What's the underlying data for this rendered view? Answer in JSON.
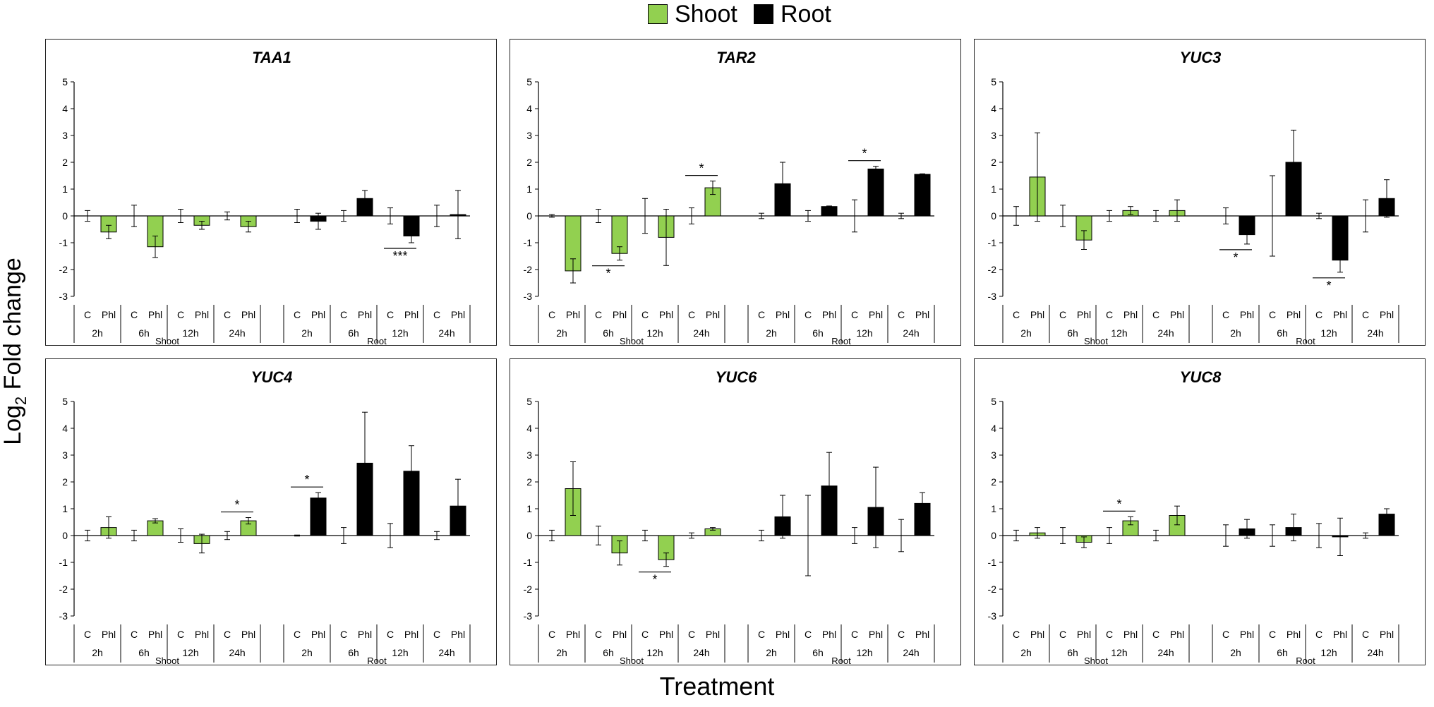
{
  "legend": [
    {
      "label": "Shoot",
      "color": "#92d050"
    },
    {
      "label": "Root",
      "color": "#000000"
    }
  ],
  "ylabel_main": "Log",
  "ylabel_sub": "2",
  "ylabel_rest": " Fold change",
  "xlabel": "Treatment",
  "chart_data": [
    {
      "type": "bar",
      "title": "TAA1",
      "ylim": [
        -3,
        5
      ],
      "yticks": [
        -3,
        -2,
        -1,
        0,
        1,
        2,
        3,
        4,
        5
      ],
      "tissues": [
        "Shoot",
        "Root"
      ],
      "times": [
        "2h",
        "6h",
        "12h",
        "24h"
      ],
      "treatments": [
        "C",
        "Phl"
      ],
      "values": {
        "Shoot": {
          "C": [
            0,
            0,
            0,
            0
          ],
          "Phl": [
            -0.6,
            -1.15,
            -0.35,
            -0.4
          ]
        },
        "Root": {
          "C": [
            0,
            0,
            0,
            0
          ],
          "Phl": [
            -0.2,
            0.65,
            -0.75,
            0.05
          ]
        }
      },
      "errors": {
        "Shoot": {
          "C": [
            0.2,
            0.4,
            0.25,
            0.15
          ],
          "Phl": [
            0.25,
            0.4,
            0.15,
            0.2
          ]
        },
        "Root": {
          "C": [
            0.25,
            0.2,
            0.3,
            0.4
          ],
          "Phl": [
            0.3,
            0.3,
            0.25,
            0.9
          ]
        }
      },
      "significance": [
        {
          "tissue": "Root",
          "time": "12h",
          "label": "***",
          "side": "below"
        }
      ]
    },
    {
      "type": "bar",
      "title": "TAR2",
      "ylim": [
        -3,
        5
      ],
      "yticks": [
        -3,
        -2,
        -1,
        0,
        1,
        2,
        3,
        4,
        5
      ],
      "tissues": [
        "Shoot",
        "Root"
      ],
      "times": [
        "2h",
        "6h",
        "12h",
        "24h"
      ],
      "treatments": [
        "C",
        "Phl"
      ],
      "values": {
        "Shoot": {
          "C": [
            0,
            0,
            0,
            0
          ],
          "Phl": [
            -2.05,
            -1.4,
            -0.8,
            1.05
          ]
        },
        "Root": {
          "C": [
            0,
            0,
            0,
            0
          ],
          "Phl": [
            1.2,
            0.35,
            1.75,
            1.55
          ]
        }
      },
      "errors": {
        "Shoot": {
          "C": [
            0.05,
            0.25,
            0.65,
            0.3
          ],
          "Phl": [
            0.45,
            0.25,
            1.05,
            0.25
          ]
        },
        "Root": {
          "C": [
            0.1,
            0.2,
            0.6,
            0.1
          ],
          "Phl": [
            0.8,
            0.02,
            0.1,
            0.02
          ]
        }
      },
      "significance": [
        {
          "tissue": "Shoot",
          "time": "6h",
          "label": "*",
          "side": "below"
        },
        {
          "tissue": "Shoot",
          "time": "24h",
          "label": "*",
          "side": "above"
        },
        {
          "tissue": "Root",
          "time": "12h",
          "label": "*",
          "side": "above"
        }
      ]
    },
    {
      "type": "bar",
      "title": "YUC3",
      "ylim": [
        -3,
        5
      ],
      "yticks": [
        -3,
        -2,
        -1,
        0,
        1,
        2,
        3,
        4,
        5
      ],
      "tissues": [
        "Shoot",
        "Root"
      ],
      "times": [
        "2h",
        "6h",
        "12h",
        "24h"
      ],
      "treatments": [
        "C",
        "Phl"
      ],
      "values": {
        "Shoot": {
          "C": [
            0,
            0,
            0,
            0
          ],
          "Phl": [
            1.45,
            -0.9,
            0.2,
            0.2
          ]
        },
        "Root": {
          "C": [
            0,
            0,
            0,
            0
          ],
          "Phl": [
            -0.7,
            2.0,
            -1.65,
            0.65
          ]
        }
      },
      "errors": {
        "Shoot": {
          "C": [
            0.35,
            0.4,
            0.2,
            0.2
          ],
          "Phl": [
            1.65,
            0.35,
            0.15,
            0.4
          ]
        },
        "Root": {
          "C": [
            0.3,
            1.5,
            0.1,
            0.6
          ],
          "Phl": [
            0.35,
            1.2,
            0.45,
            0.7
          ]
        }
      },
      "significance": [
        {
          "tissue": "Root",
          "time": "2h",
          "label": "*",
          "side": "below"
        },
        {
          "tissue": "Root",
          "time": "12h",
          "label": "*",
          "side": "below"
        }
      ]
    },
    {
      "type": "bar",
      "title": "YUC4",
      "ylim": [
        -3,
        5
      ],
      "yticks": [
        -3,
        -2,
        -1,
        0,
        1,
        2,
        3,
        4,
        5
      ],
      "tissues": [
        "Shoot",
        "Root"
      ],
      "times": [
        "2h",
        "6h",
        "12h",
        "24h"
      ],
      "treatments": [
        "C",
        "Phl"
      ],
      "values": {
        "Shoot": {
          "C": [
            0,
            0,
            0,
            0
          ],
          "Phl": [
            0.3,
            0.55,
            -0.3,
            0.55
          ]
        },
        "Root": {
          "C": [
            0,
            0,
            0,
            0
          ],
          "Phl": [
            1.4,
            2.7,
            2.4,
            1.1
          ]
        }
      },
      "errors": {
        "Shoot": {
          "C": [
            0.2,
            0.2,
            0.25,
            0.15
          ],
          "Phl": [
            0.4,
            0.08,
            0.35,
            0.12
          ]
        },
        "Root": {
          "C": [
            0.02,
            0.3,
            0.45,
            0.15
          ],
          "Phl": [
            0.2,
            1.9,
            0.95,
            1.0
          ]
        }
      },
      "significance": [
        {
          "tissue": "Shoot",
          "time": "24h",
          "label": "*",
          "side": "above"
        },
        {
          "tissue": "Root",
          "time": "2h",
          "label": "*",
          "side": "above"
        }
      ]
    },
    {
      "type": "bar",
      "title": "YUC6",
      "ylim": [
        -3,
        5
      ],
      "yticks": [
        -3,
        -2,
        -1,
        0,
        1,
        2,
        3,
        4,
        5
      ],
      "tissues": [
        "Shoot",
        "Root"
      ],
      "times": [
        "2h",
        "6h",
        "12h",
        "24h"
      ],
      "treatments": [
        "C",
        "Phl"
      ],
      "values": {
        "Shoot": {
          "C": [
            0,
            0,
            0,
            0
          ],
          "Phl": [
            1.75,
            -0.65,
            -0.9,
            0.25
          ]
        },
        "Root": {
          "C": [
            0,
            0,
            0,
            0
          ],
          "Phl": [
            0.7,
            1.85,
            1.05,
            1.2
          ]
        }
      },
      "errors": {
        "Shoot": {
          "C": [
            0.2,
            0.35,
            0.2,
            0.1
          ],
          "Phl": [
            1.0,
            0.45,
            0.25,
            0.05
          ]
        },
        "Root": {
          "C": [
            0.2,
            1.5,
            0.3,
            0.6
          ],
          "Phl": [
            0.8,
            1.25,
            1.5,
            0.4
          ]
        }
      },
      "significance": [
        {
          "tissue": "Shoot",
          "time": "12h",
          "label": "*",
          "side": "below"
        }
      ]
    },
    {
      "type": "bar",
      "title": "YUC8",
      "ylim": [
        -3,
        5
      ],
      "yticks": [
        -3,
        -2,
        -1,
        0,
        1,
        2,
        3,
        4,
        5
      ],
      "tissues": [
        "Shoot",
        "Root"
      ],
      "times": [
        "2h",
        "6h",
        "12h",
        "24h"
      ],
      "treatments": [
        "C",
        "Phl"
      ],
      "values": {
        "Shoot": {
          "C": [
            0,
            0,
            0,
            0
          ],
          "Phl": [
            0.1,
            -0.25,
            0.55,
            0.75
          ]
        },
        "Root": {
          "C": [
            0,
            0,
            0,
            0
          ],
          "Phl": [
            0.25,
            0.3,
            -0.05,
            0.8
          ]
        }
      },
      "errors": {
        "Shoot": {
          "C": [
            0.2,
            0.3,
            0.3,
            0.2
          ],
          "Phl": [
            0.2,
            0.2,
            0.15,
            0.35
          ]
        },
        "Root": {
          "C": [
            0.4,
            0.4,
            0.45,
            0.1
          ],
          "Phl": [
            0.35,
            0.5,
            0.7,
            0.2
          ]
        }
      },
      "significance": [
        {
          "tissue": "Shoot",
          "time": "12h",
          "label": "*",
          "side": "above"
        }
      ]
    }
  ]
}
